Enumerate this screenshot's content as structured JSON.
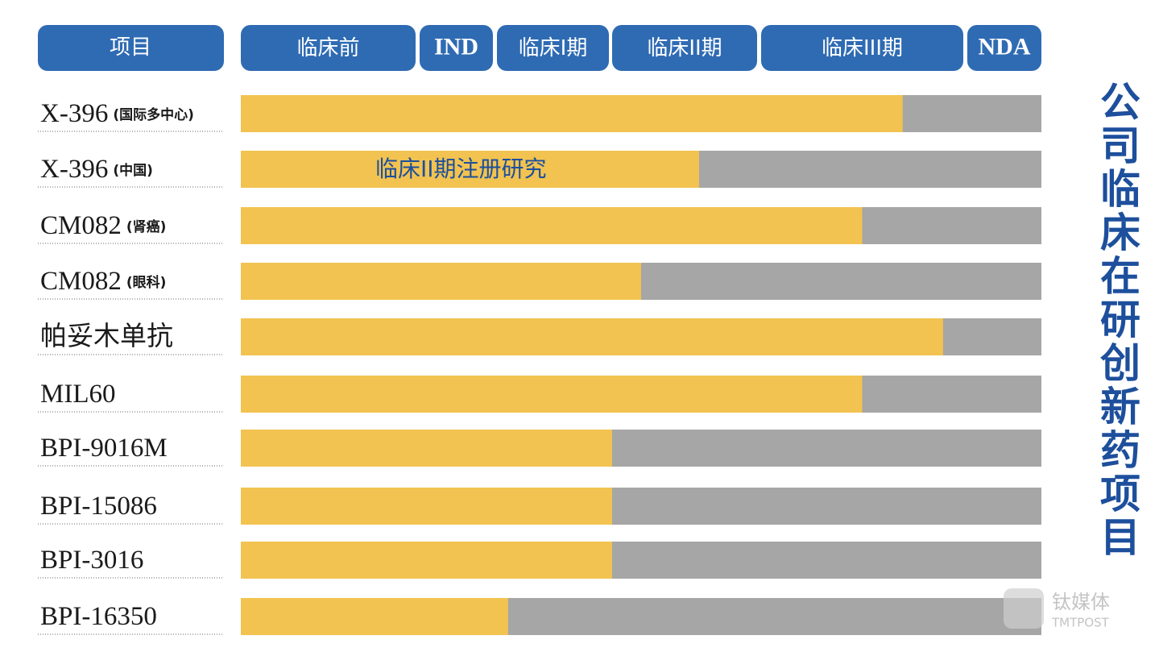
{
  "chart_data": {
    "type": "bar",
    "title": "公司临床在研创新药项目",
    "category_header": "项目",
    "stages": [
      "临床前",
      "IND",
      "临床I期",
      "临床II期",
      "临床III期",
      "NDA"
    ],
    "categories": [
      "X-396",
      "X-396",
      "CM082",
      "CM082",
      "帕妥木单抗",
      "MIL60",
      "BPI-9016M",
      "BPI-15086",
      "BPI-3016",
      "BPI-16350"
    ],
    "category_notes": [
      "(国际多中心)",
      "(中国)",
      "(肾癌)",
      "(眼科)",
      null,
      null,
      null,
      null,
      null,
      null
    ],
    "values": [
      4.7,
      3.6,
      4.5,
      3.2,
      4.9,
      4.5,
      3.0,
      3.0,
      3.0,
      2.1
    ],
    "xlim": [
      0,
      6
    ],
    "color": "#f2c350",
    "track_color": "#a6a6a6",
    "header_color": "#2f6bb3",
    "annotation": "临床II期注册研究",
    "watermark": {
      "cn": "钛媒体",
      "en": "TMTPOST"
    }
  }
}
